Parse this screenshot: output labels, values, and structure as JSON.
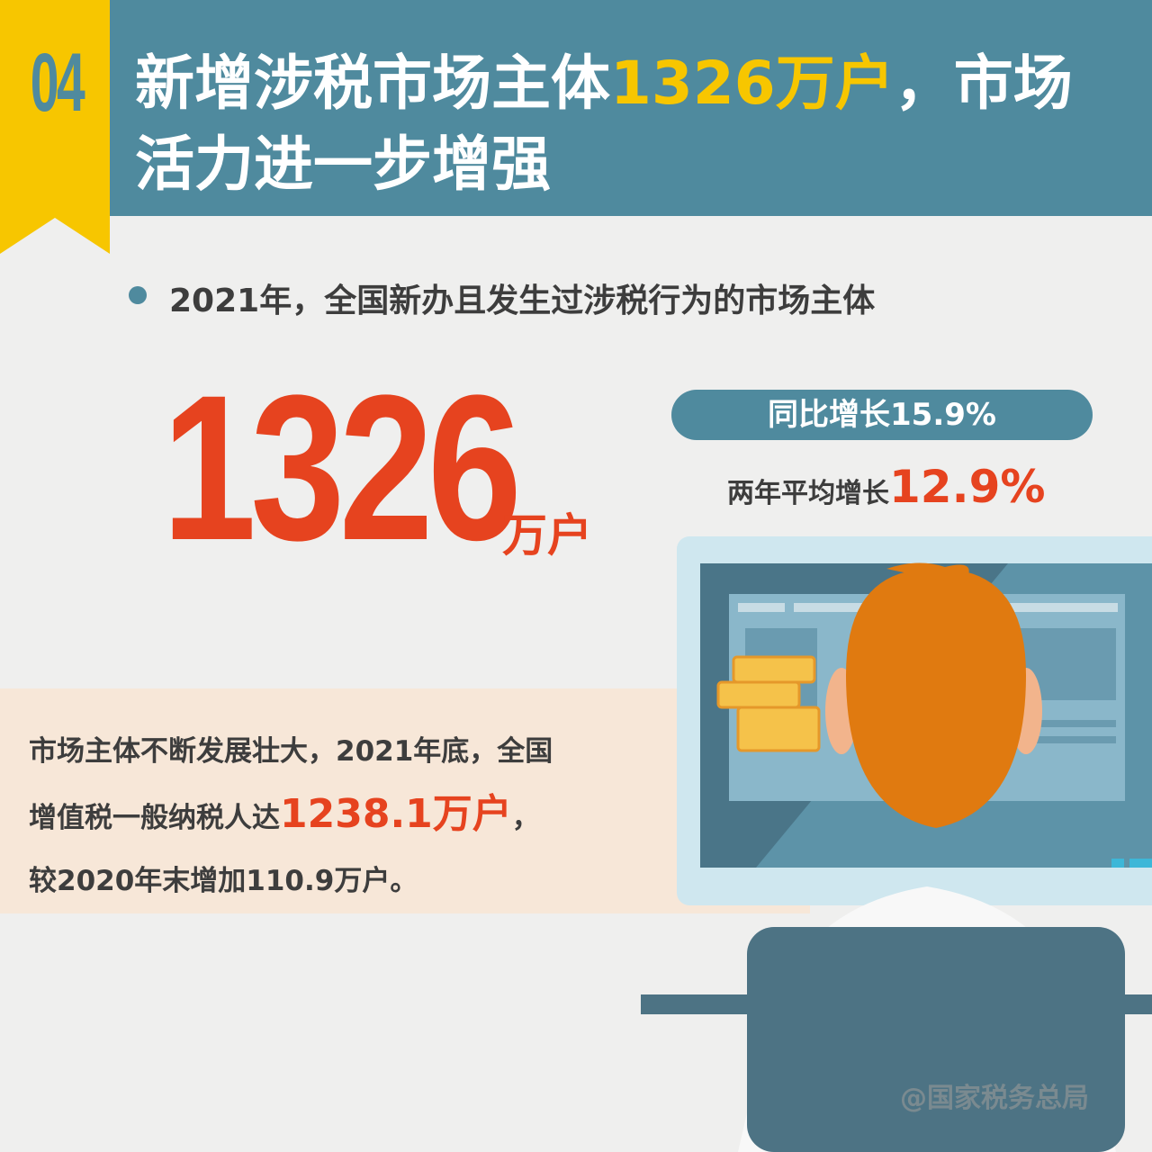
{
  "header": {
    "number": "04",
    "title_pre": "新增涉税市场主体",
    "title_highlight": "1326万户",
    "title_post": "，市场",
    "title_line2": "活力进一步增强"
  },
  "headline": {
    "text": "2021年，全国新办且发生过涉税行为的市场主体",
    "value": "1326",
    "unit": "万户"
  },
  "growth": {
    "yoy": "同比增长15.9%",
    "avg_label": "两年平均增长",
    "avg_value": "12.9%"
  },
  "summary": {
    "line1": "市场主体不断发展壮大，2021年底，全国",
    "line2_pre": "增值税一般纳税人达",
    "line2_value": "1238.1万户",
    "line2_post": "，",
    "line3": "较2020年末增加110.9万户。"
  },
  "watermark": "@国家税务总局",
  "colors": {
    "teal": "#4f8a9e",
    "yellow": "#f7c600",
    "red": "#e6431f",
    "hair": "#e07a10"
  }
}
